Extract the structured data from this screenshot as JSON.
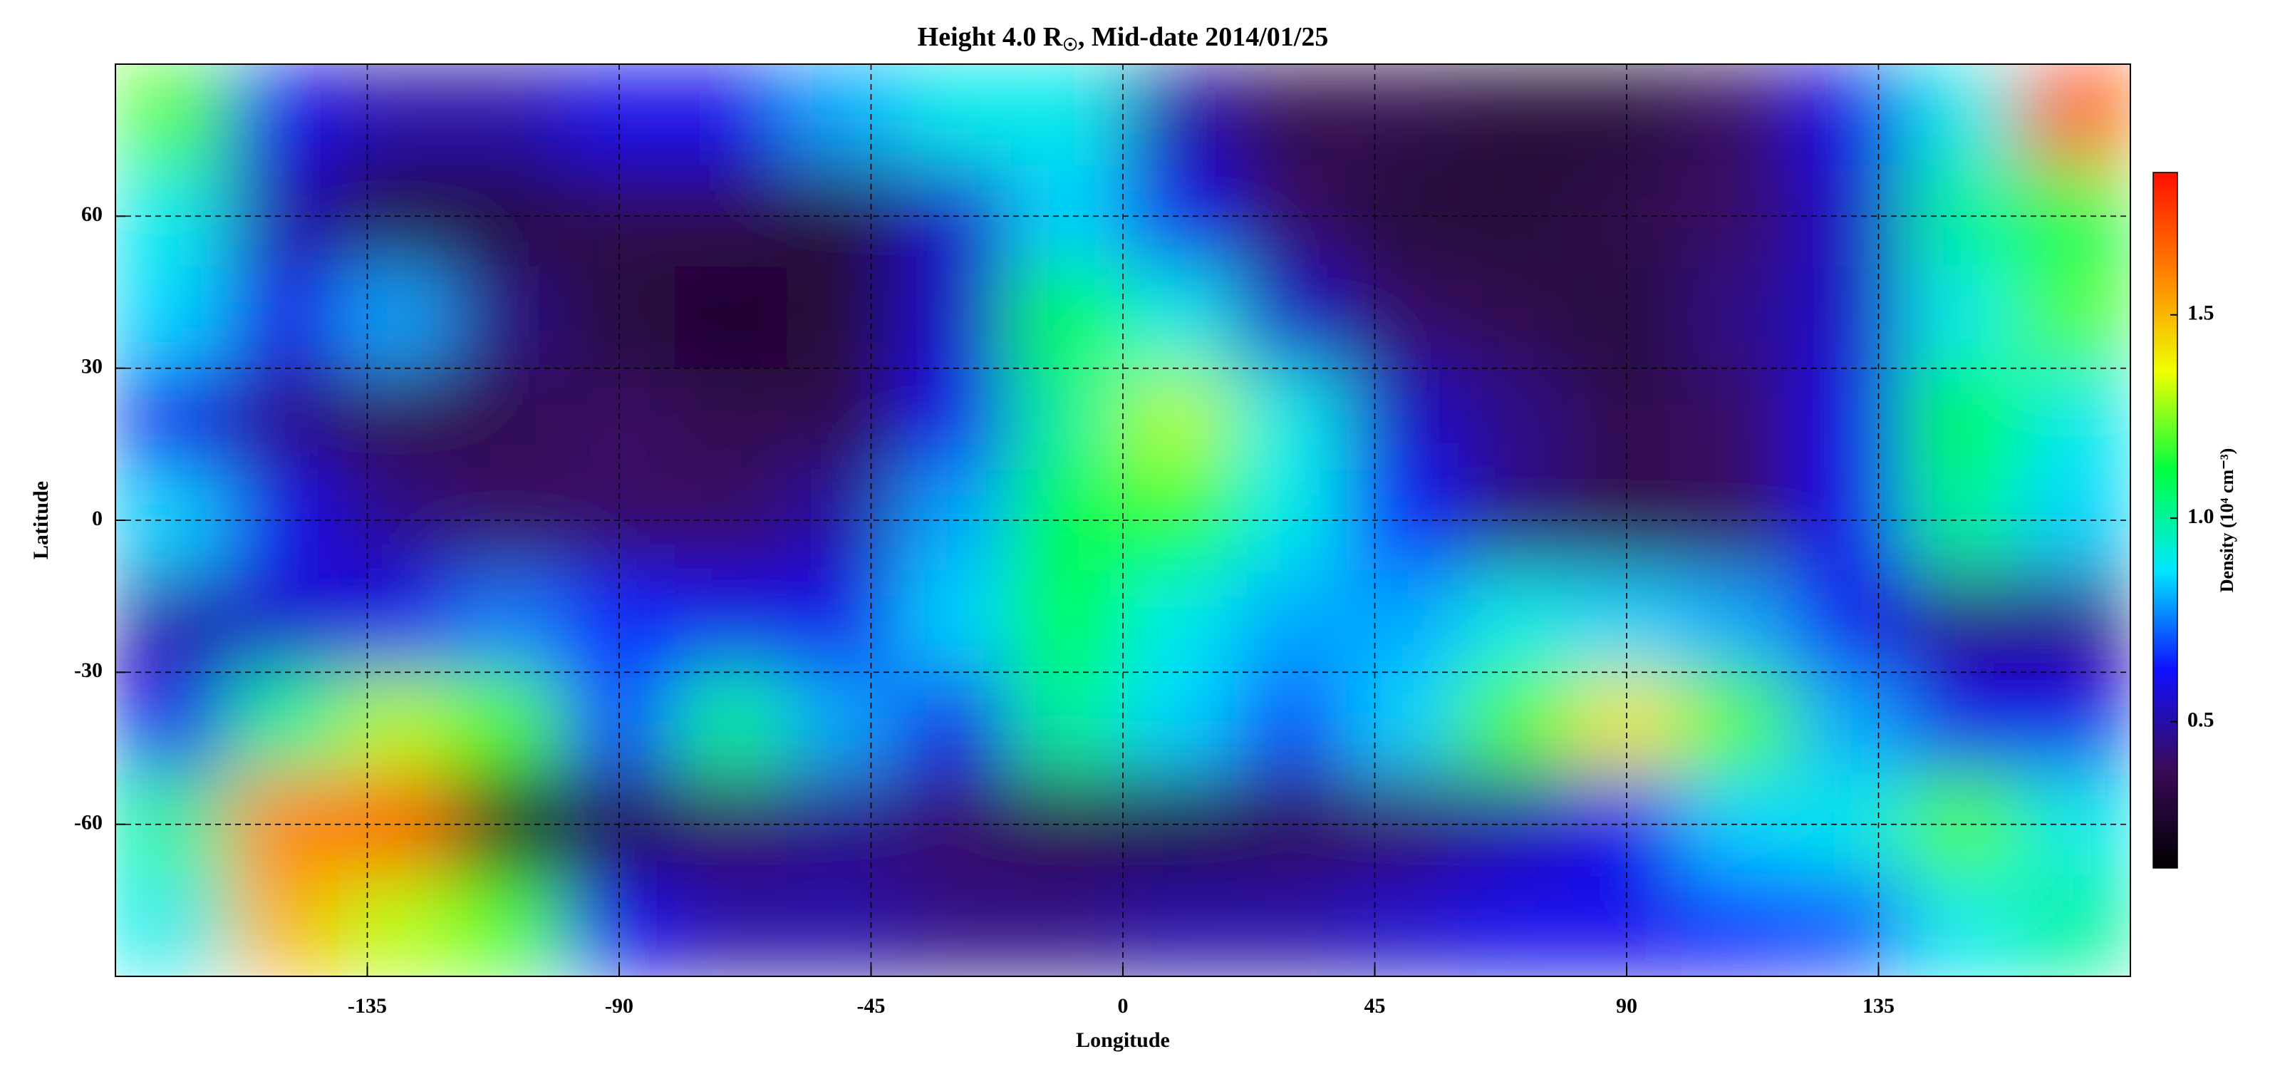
{
  "chart_data": {
    "type": "heatmap",
    "title_main": "Height 4.0 R",
    "title_sub": "☉",
    "title_rest": ", Mid-date 2014/01/25",
    "x_label": "Longitude",
    "y_label": "Latitude",
    "colorbar_label": "Density (10⁴ cm⁻³)",
    "xlim": [
      -180,
      180
    ],
    "ylim": [
      -90,
      90
    ],
    "xticks": [
      -135,
      -90,
      -45,
      0,
      45,
      90,
      135
    ],
    "yticks": [
      -60,
      -30,
      0,
      30,
      60
    ],
    "zlim": [
      0.14,
      1.85
    ],
    "zticks": [
      0.5,
      {
        "value": 1,
        "label": "1.0"
      },
      1.5
    ],
    "grid": true,
    "colormap": [
      "#000000",
      "#3a0a5a",
      "#1010ff",
      "#00e8ff",
      "#00ff40",
      "#f0ff00",
      "#ff8000",
      "#ff1000"
    ],
    "x": [
      -170,
      -150,
      -130,
      -110,
      -90,
      -70,
      -50,
      -30,
      -10,
      10,
      30,
      50,
      70,
      90,
      110,
      130,
      150,
      170
    ],
    "y": [
      80,
      60,
      40,
      20,
      0,
      -20,
      -40,
      -60,
      -80
    ],
    "z": [
      [
        1.2,
        0.6,
        0.5,
        0.5,
        0.6,
        0.6,
        0.8,
        0.9,
        0.9,
        0.5,
        0.35,
        0.35,
        0.3,
        0.3,
        0.4,
        0.6,
        0.9,
        1.7
      ],
      [
        0.9,
        0.5,
        0.3,
        0.3,
        0.35,
        0.35,
        0.3,
        0.55,
        0.85,
        0.6,
        0.4,
        0.3,
        0.3,
        0.35,
        0.4,
        0.55,
        1.0,
        1.1
      ],
      [
        0.85,
        0.6,
        0.8,
        0.45,
        0.3,
        0.25,
        0.3,
        0.55,
        1.1,
        0.9,
        0.55,
        0.4,
        0.35,
        0.3,
        0.45,
        0.55,
        0.9,
        1.2
      ],
      [
        0.6,
        0.45,
        0.35,
        0.35,
        0.4,
        0.35,
        0.35,
        0.6,
        1.0,
        1.3,
        0.9,
        0.55,
        0.45,
        0.35,
        0.4,
        0.6,
        1.1,
        0.9
      ],
      [
        0.85,
        0.6,
        0.45,
        0.4,
        0.4,
        0.4,
        0.5,
        0.8,
        1.1,
        1.15,
        0.9,
        0.65,
        0.45,
        0.35,
        0.4,
        0.6,
        1.0,
        0.85
      ],
      [
        0.5,
        0.55,
        0.6,
        0.75,
        0.65,
        0.6,
        0.6,
        0.85,
        1.1,
        0.9,
        0.8,
        0.8,
        0.9,
        0.85,
        0.8,
        0.6,
        0.45,
        0.45
      ],
      [
        0.6,
        1.0,
        1.3,
        1.2,
        0.7,
        1.0,
        0.8,
        0.6,
        1.0,
        0.85,
        0.7,
        0.85,
        1.2,
        1.4,
        1.2,
        0.8,
        0.6,
        0.6
      ],
      [
        1.0,
        1.6,
        1.7,
        0.2,
        0.3,
        0.4,
        0.45,
        0.4,
        0.35,
        0.3,
        0.35,
        0.4,
        0.5,
        0.6,
        0.85,
        0.9,
        1.2,
        0.9
      ],
      [
        0.9,
        1.5,
        1.3,
        1.2,
        0.6,
        0.5,
        0.5,
        0.45,
        0.45,
        0.5,
        0.5,
        0.55,
        0.6,
        0.6,
        0.65,
        0.7,
        0.9,
        1.0
      ]
    ]
  }
}
